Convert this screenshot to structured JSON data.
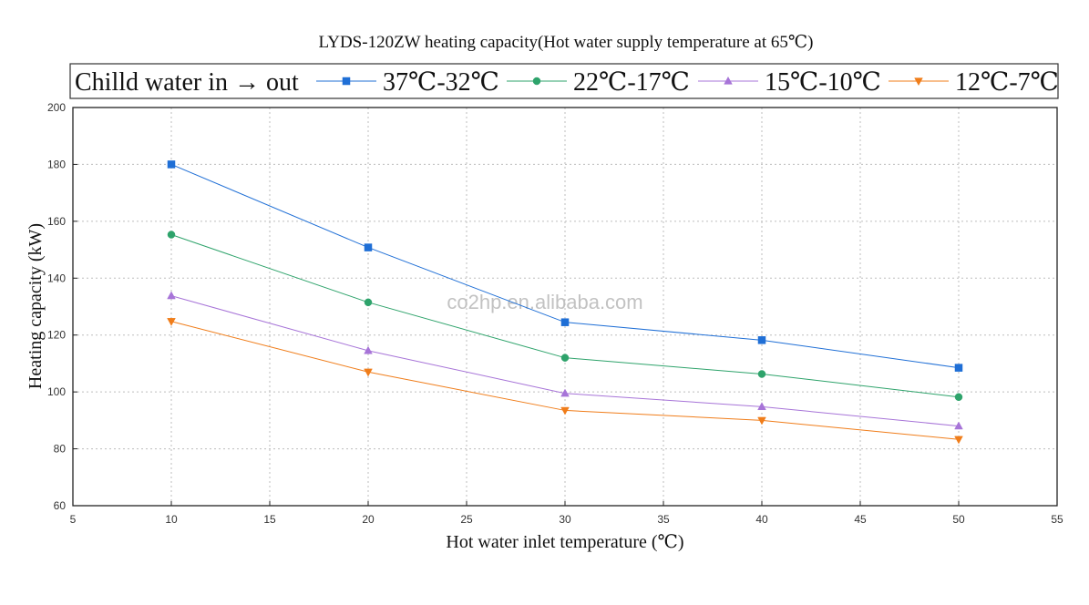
{
  "chart_data": {
    "type": "line",
    "title": "LYDS-120ZW heating capacity(Hot water supply temperature at 65℃)",
    "xlabel": "Hot water inlet temperature (℃)",
    "ylabel": "Heating capacity (kW)",
    "xlim": [
      5,
      55
    ],
    "ylim": [
      60,
      200
    ],
    "xticks": [
      5,
      10,
      15,
      20,
      25,
      30,
      35,
      40,
      45,
      50,
      55
    ],
    "yticks": [
      60,
      80,
      100,
      120,
      140,
      160,
      180,
      200
    ],
    "grid": true,
    "legend_title": "Chilld water in → out",
    "legend_position": "top",
    "watermark": "co2hp.en.alibaba.com",
    "x": [
      10,
      20,
      30,
      40,
      50
    ],
    "series": [
      {
        "name": "37℃-32℃",
        "values": [
          180,
          150.8,
          124.5,
          118.2,
          108.5
        ],
        "color": "#1f6fd6",
        "marker": "square"
      },
      {
        "name": "22℃-17℃",
        "values": [
          155.3,
          131.5,
          112,
          106.3,
          98.2
        ],
        "color": "#2ea36b",
        "marker": "circle"
      },
      {
        "name": "15℃-10℃",
        "values": [
          133.8,
          114.5,
          99.5,
          94.8,
          88
        ],
        "color": "#a774d8",
        "marker": "triangle-up"
      },
      {
        "name": "12℃-7℃",
        "values": [
          124.8,
          107,
          93.5,
          90,
          83.3
        ],
        "color": "#f07d1a",
        "marker": "triangle-down"
      }
    ]
  }
}
